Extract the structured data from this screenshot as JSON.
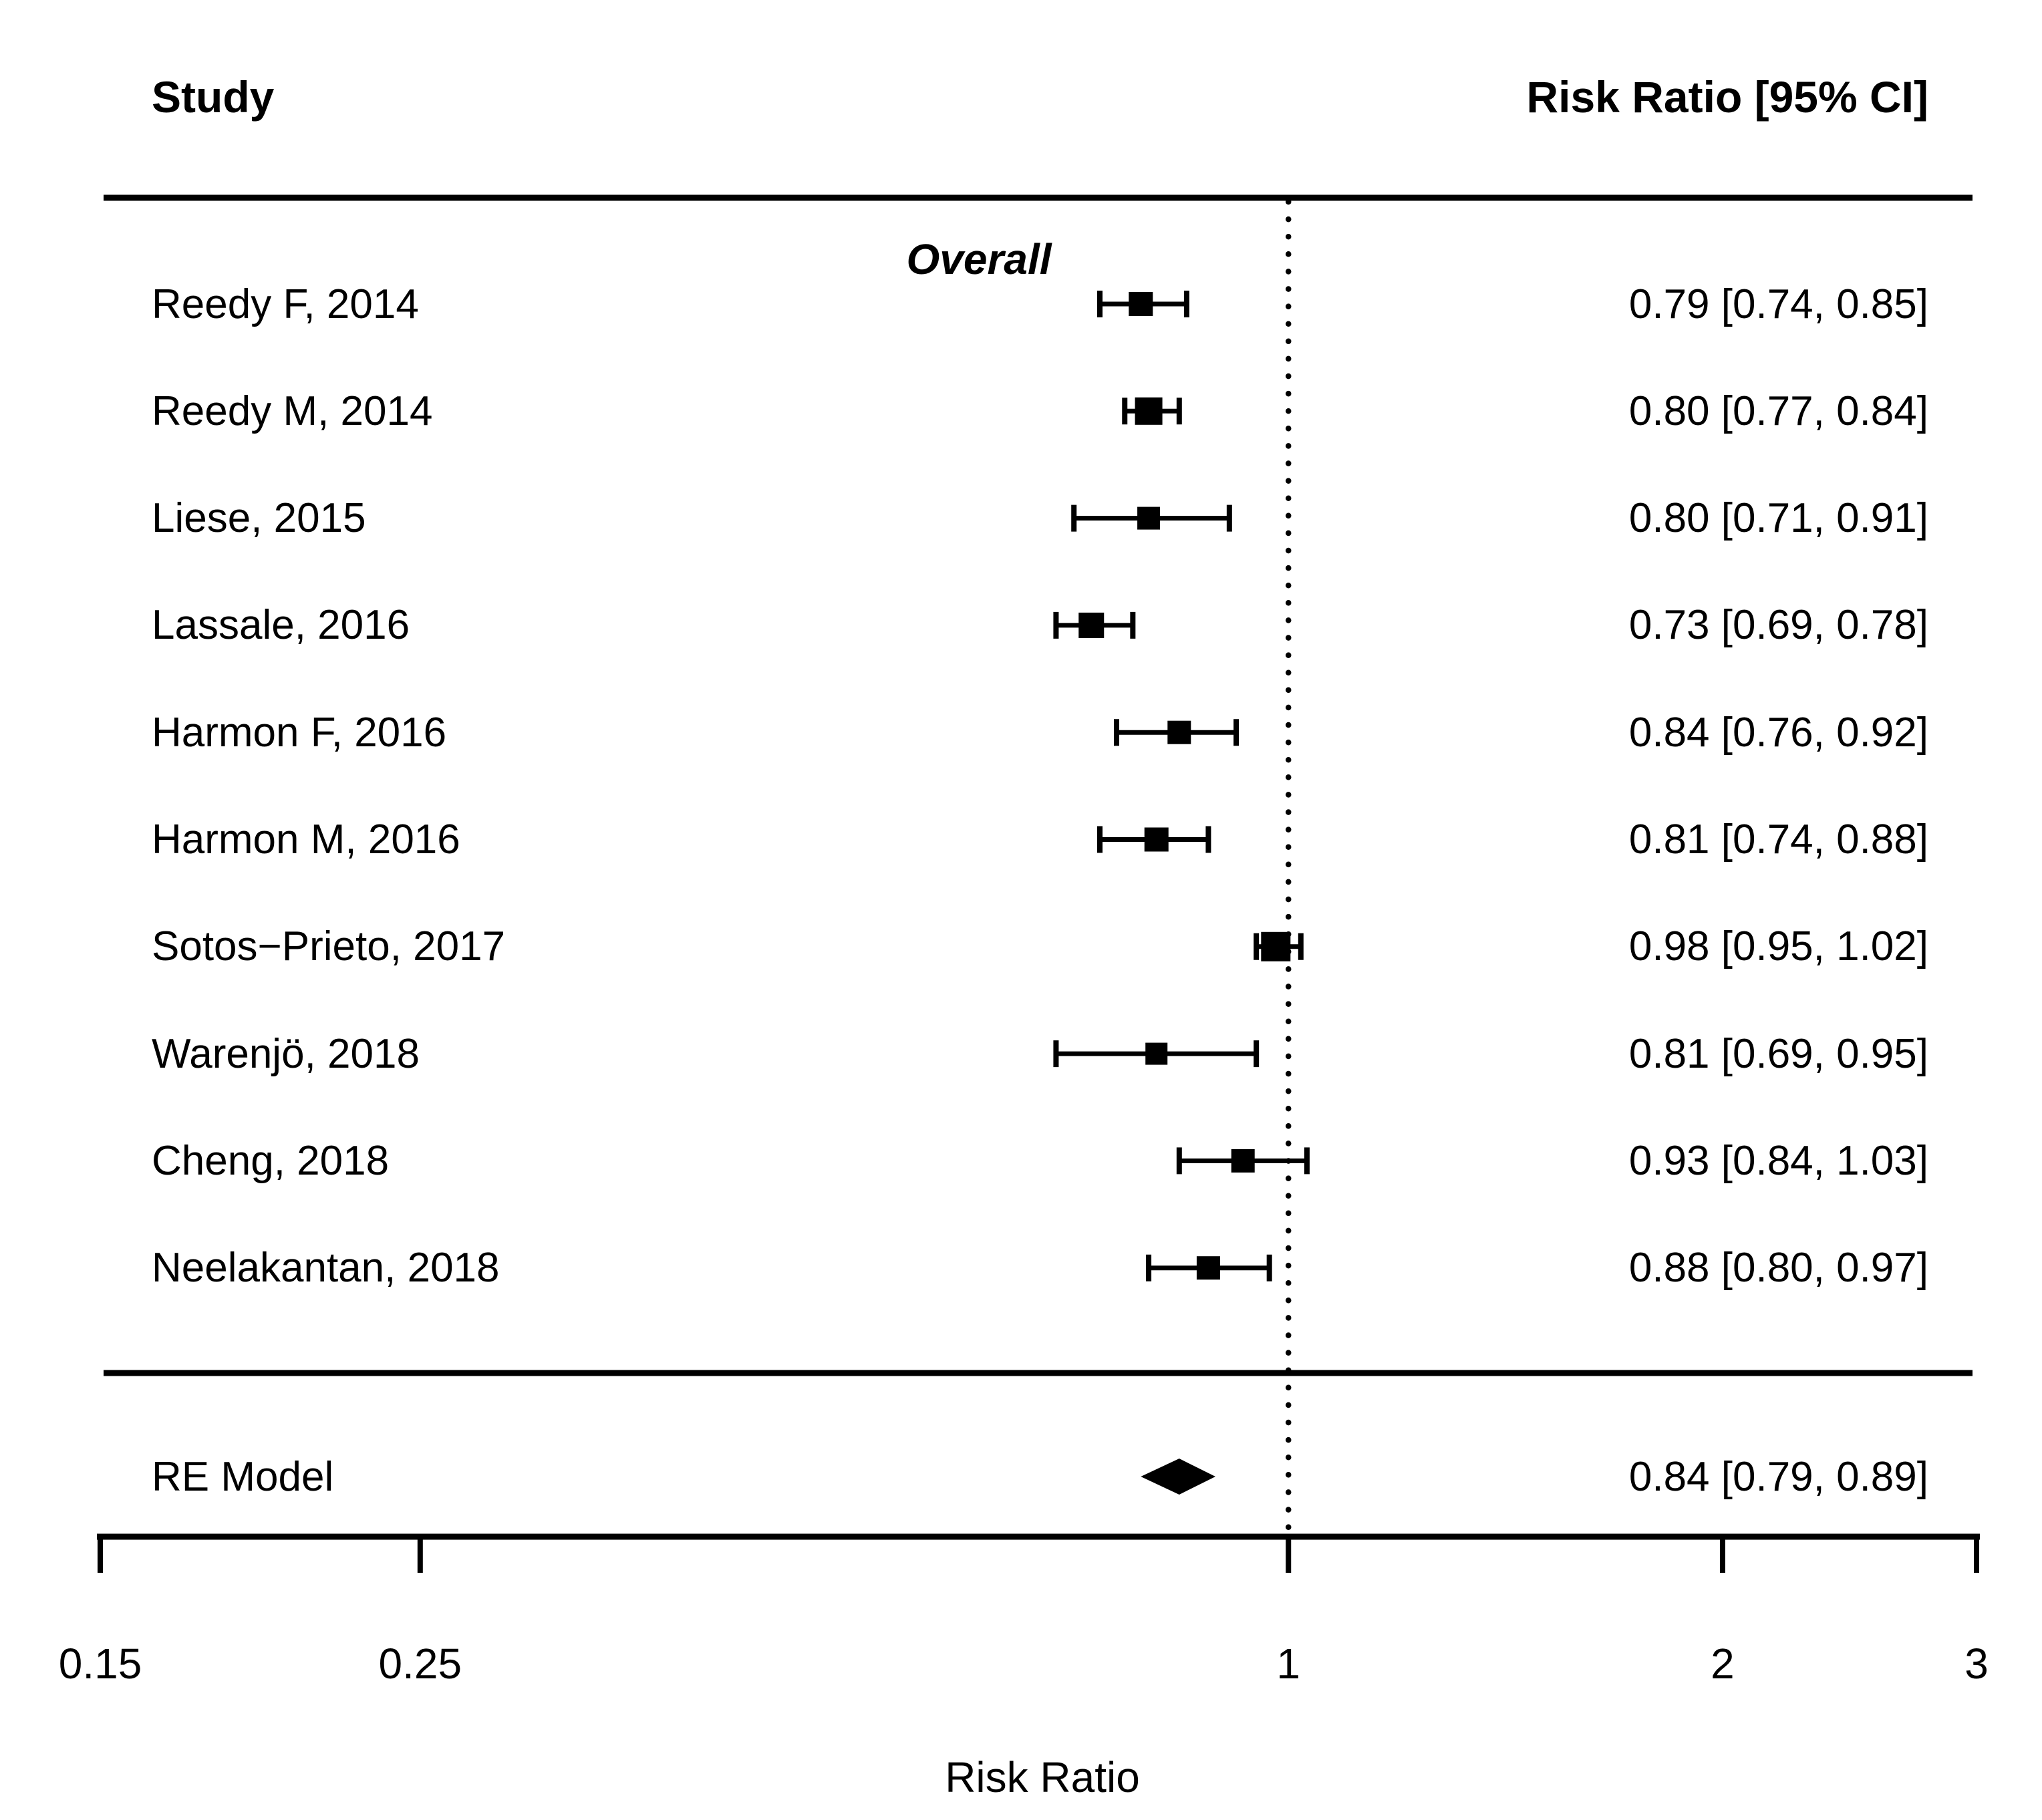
{
  "page": {
    "background": "#ffffff",
    "text_color": "#000000"
  },
  "header": {
    "study_column": "Study",
    "effect_column": "Risk Ratio [95% CI]"
  },
  "group_label": "Overall",
  "chart_data": {
    "type": "forest",
    "x_scale": "log",
    "x_range": [
      0.15,
      3
    ],
    "x_ticks": [
      0.15,
      0.25,
      1,
      2,
      3
    ],
    "x_tick_labels": [
      "0.15",
      "0.25",
      "1",
      "2",
      "3"
    ],
    "xlabel": "Risk Ratio",
    "reference_line": 1,
    "effect_measure": "Risk Ratio [95% CI]",
    "studies": [
      {
        "label": "Reedy F, 2014",
        "rr": 0.79,
        "ci_lower": 0.74,
        "ci_upper": 0.85,
        "text": "0.79 [0.74, 0.85]",
        "marker_size": 36
      },
      {
        "label": "Reedy M, 2014",
        "rr": 0.8,
        "ci_lower": 0.77,
        "ci_upper": 0.84,
        "text": "0.80 [0.77, 0.84]",
        "marker_size": 41
      },
      {
        "label": "Liese, 2015",
        "rr": 0.8,
        "ci_lower": 0.71,
        "ci_upper": 0.91,
        "text": "0.80 [0.71, 0.91]",
        "marker_size": 34
      },
      {
        "label": "Lassale, 2016",
        "rr": 0.73,
        "ci_lower": 0.69,
        "ci_upper": 0.78,
        "text": "0.73 [0.69, 0.78]",
        "marker_size": 38
      },
      {
        "label": "Harmon F, 2016",
        "rr": 0.84,
        "ci_lower": 0.76,
        "ci_upper": 0.92,
        "text": "0.84 [0.76, 0.92]",
        "marker_size": 35
      },
      {
        "label": "Harmon M, 2016",
        "rr": 0.81,
        "ci_lower": 0.74,
        "ci_upper": 0.88,
        "text": "0.81 [0.74, 0.88]",
        "marker_size": 36
      },
      {
        "label": "Sotos−Prieto, 2017",
        "rr": 0.98,
        "ci_lower": 0.95,
        "ci_upper": 1.02,
        "text": "0.98 [0.95, 1.02]",
        "marker_size": 44
      },
      {
        "label": "Warenjö, 2018",
        "rr": 0.81,
        "ci_lower": 0.69,
        "ci_upper": 0.95,
        "text": "0.81 [0.69, 0.95]",
        "marker_size": 33
      },
      {
        "label": "Cheng, 2018",
        "rr": 0.93,
        "ci_lower": 0.84,
        "ci_upper": 1.03,
        "text": "0.93 [0.84, 1.03]",
        "marker_size": 35
      },
      {
        "label": "Neelakantan, 2018",
        "rr": 0.88,
        "ci_lower": 0.8,
        "ci_upper": 0.97,
        "text": "0.88 [0.80, 0.97]",
        "marker_size": 35
      }
    ],
    "summary": {
      "label": "RE Model",
      "rr": 0.84,
      "ci_lower": 0.79,
      "ci_upper": 0.89,
      "text": "0.84 [0.79, 0.89]"
    }
  }
}
